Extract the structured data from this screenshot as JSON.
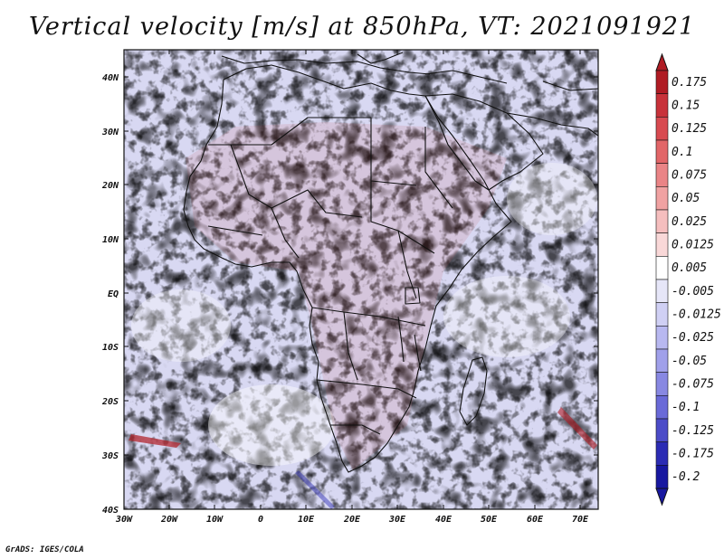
{
  "title": "Vertical velocity [m/s] at 850hPa, VT: 2021091921",
  "footer": "GrADS: IGES/COLA",
  "map": {
    "region": "Africa",
    "lon_range": [
      -30,
      76
    ],
    "lat_range": [
      -40,
      45
    ],
    "lat_labels": [
      "40N",
      "30N",
      "20N",
      "10N",
      "EQ",
      "10S",
      "20S",
      "30S",
      "40S"
    ],
    "lat_values": [
      40,
      30,
      20,
      10,
      0,
      -10,
      -20,
      -30,
      -40
    ],
    "lon_labels": [
      "30W",
      "20W",
      "10W",
      "0",
      "10E",
      "20E",
      "30E",
      "40E",
      "50E",
      "60E",
      "70E"
    ],
    "lon_values": [
      -30,
      -20,
      -10,
      0,
      10,
      20,
      30,
      40,
      50,
      60,
      70
    ]
  },
  "colorbar": {
    "labels": [
      "0.175",
      "0.15",
      "0.125",
      "0.1",
      "0.075",
      "0.05",
      "0.025",
      "0.0125",
      "0.005",
      "-0.005",
      "-0.0125",
      "-0.025",
      "-0.05",
      "-0.075",
      "-0.1",
      "-0.125",
      "-0.175",
      "-0.2"
    ],
    "colors": [
      "#b01c24",
      "#c8323a",
      "#d84a50",
      "#e26668",
      "#ea8486",
      "#f0a2a2",
      "#f5bebe",
      "#f9d8d8",
      "#ffffff",
      "#e6e6f8",
      "#d0d0f4",
      "#b8b8f0",
      "#a0a0ea",
      "#8888e2",
      "#6a6ad8",
      "#4c4cc8",
      "#2c2cb4",
      "#1818a0"
    ]
  }
}
